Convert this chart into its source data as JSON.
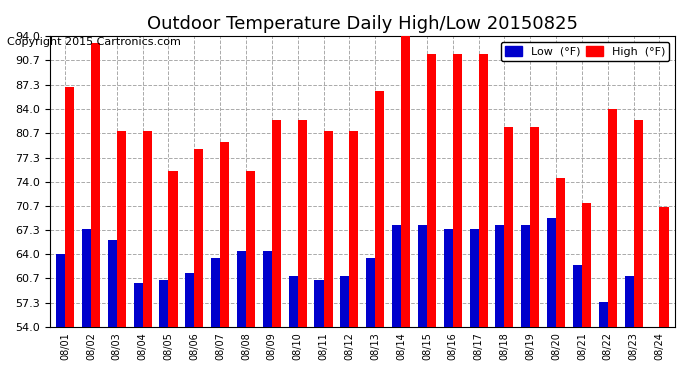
{
  "title": "Outdoor Temperature Daily High/Low 20150825",
  "copyright": "Copyright 2015 Cartronics.com",
  "legend_low": "Low  (°F)",
  "legend_high": "High  (°F)",
  "dates": [
    "08/01",
    "08/02",
    "08/03",
    "08/04",
    "08/05",
    "08/06",
    "08/07",
    "08/08",
    "08/09",
    "08/10",
    "08/11",
    "08/12",
    "08/13",
    "08/14",
    "08/15",
    "08/16",
    "08/17",
    "08/18",
    "08/19",
    "08/20",
    "08/21",
    "08/22",
    "08/23",
    "08/24"
  ],
  "high": [
    87.0,
    93.0,
    81.0,
    81.0,
    75.5,
    78.5,
    79.5,
    75.5,
    82.5,
    82.5,
    81.0,
    81.0,
    86.5,
    94.0,
    91.5,
    91.5,
    91.5,
    81.5,
    81.5,
    74.5,
    71.0,
    84.0,
    82.5,
    70.5
  ],
  "low": [
    64.0,
    67.5,
    66.0,
    60.0,
    60.5,
    61.5,
    63.5,
    64.5,
    64.5,
    61.0,
    60.5,
    61.0,
    63.5,
    68.0,
    68.0,
    67.5,
    67.5,
    68.0,
    68.0,
    69.0,
    62.5,
    57.5,
    61.0,
    54.0
  ],
  "ymin": 54.0,
  "ymax": 94.0,
  "yticks": [
    54.0,
    57.3,
    60.7,
    64.0,
    67.3,
    70.7,
    74.0,
    77.3,
    80.7,
    84.0,
    87.3,
    90.7,
    94.0
  ],
  "bar_width": 0.35,
  "high_color": "#ff0000",
  "low_color": "#0000cc",
  "bg_color": "#ffffff",
  "grid_color": "#aaaaaa",
  "title_fontsize": 13,
  "copyright_fontsize": 8
}
